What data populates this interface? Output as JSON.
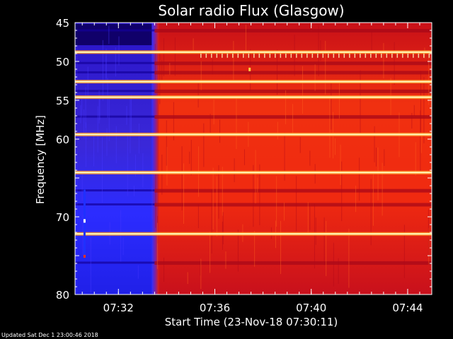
{
  "chart_data": {
    "type": "heatmap",
    "title": "Solar radio Flux (Glasgow)",
    "ylabel": "Frequency [MHz]",
    "xlabel": "Start Time (23-Nov-18 07:30:11)",
    "ylim": [
      45,
      80
    ],
    "y_axis_inverted": true,
    "y_ticks": [
      45,
      50,
      55,
      60,
      65,
      70,
      75,
      80
    ],
    "y_tick_labels": [
      "45",
      "50",
      "55",
      "60",
      "",
      "70",
      "",
      "80"
    ],
    "x_ticks": [
      "07:32",
      "07:36",
      "07:40",
      "07:44"
    ],
    "x_range_minutes_after_start": [
      0,
      14.8
    ],
    "x_tick_minutes_after_start": [
      1.8,
      5.8,
      9.8,
      13.8
    ],
    "transition_minutes_after_start": 3.3,
    "grid": false,
    "colors": {
      "background": "#000000",
      "low": "#1a00a0",
      "mid": "#2020ff",
      "high": "#e81010",
      "peak": "#ffffc0"
    },
    "bright_bands_mhz": [
      48.8,
      52.6,
      54.6,
      59.4,
      64.3,
      72.2
    ],
    "dark_bands_mhz": [
      46.0,
      50.2,
      51.4,
      53.8,
      57.1,
      66.6,
      68.4,
      75.9
    ]
  },
  "footer": {
    "updated": "Updated Sat Dec  1 23:00:46 2018"
  }
}
